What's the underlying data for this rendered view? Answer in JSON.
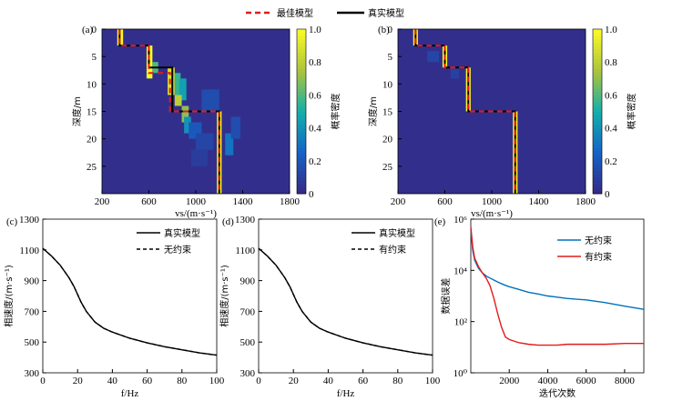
{
  "top_legend": {
    "items": [
      {
        "label": "最佳模型",
        "color": "#e41a1c",
        "dashed": true
      },
      {
        "label": "真实模型",
        "color": "#000000",
        "dashed": false
      }
    ]
  },
  "chart_data": [
    {
      "panel": "(a)",
      "type": "heatmap",
      "xlabel": "vs/(m·s⁻¹)",
      "ylabel": "深度/m",
      "colorbar_label": "概率密度",
      "xlim": [
        200,
        1800
      ],
      "ylim": [
        0,
        30
      ],
      "x_ticks": [
        "200",
        "600",
        "1000",
        "1400",
        "1800"
      ],
      "y_ticks": [
        "0",
        "5",
        "10",
        "15",
        "20",
        "25"
      ],
      "colorbar_ticks": [
        "0",
        "0.2",
        "0.4",
        "0.6",
        "0.8",
        "1.0"
      ],
      "colors": {
        "low": "#3d2f9a",
        "mid": "#18b3a4",
        "high": "#f9f925"
      },
      "true_model": {
        "vs": [
          350,
          350,
          600,
          600,
          800,
          800,
          1200,
          1200
        ],
        "depth": [
          0,
          3,
          3,
          7,
          7,
          15,
          15,
          30
        ]
      },
      "best_model": {
        "vs": [
          350,
          350,
          600,
          600,
          780,
          780,
          1200,
          1200
        ],
        "depth": [
          0,
          3,
          3,
          8,
          8,
          15,
          15,
          30
        ]
      }
    },
    {
      "panel": "(b)",
      "type": "heatmap",
      "xlabel": "vs/(m·s⁻¹)",
      "ylabel": "深度/m",
      "colorbar_label": "概率密度",
      "xlim": [
        200,
        1800
      ],
      "ylim": [
        0,
        30
      ],
      "x_ticks": [
        "200",
        "600",
        "1000",
        "1400",
        "1800"
      ],
      "y_ticks": [
        "0",
        "5",
        "10",
        "15",
        "20",
        "25"
      ],
      "colorbar_ticks": [
        "0",
        "0.2",
        "0.4",
        "0.6",
        "0.8",
        "1.0"
      ],
      "true_model": {
        "vs": [
          350,
          350,
          600,
          600,
          800,
          800,
          1200,
          1200
        ],
        "depth": [
          0,
          3,
          3,
          7,
          7,
          15,
          15,
          30
        ]
      },
      "best_model": {
        "vs": [
          350,
          350,
          600,
          600,
          800,
          800,
          1200,
          1200
        ],
        "depth": [
          0,
          3,
          3,
          7,
          7,
          15,
          15,
          30
        ]
      }
    },
    {
      "panel": "(c)",
      "type": "line",
      "xlabel": "f/Hz",
      "ylabel": "相速度/(m·s⁻¹)",
      "xlim": [
        0,
        100
      ],
      "ylim": [
        300,
        1300
      ],
      "x_ticks": [
        "0",
        "20",
        "40",
        "60",
        "80",
        "100"
      ],
      "y_ticks": [
        "300",
        "500",
        "700",
        "900",
        "1100",
        "1300"
      ],
      "x": [
        0,
        5,
        10,
        15,
        18,
        20,
        22,
        25,
        30,
        35,
        40,
        50,
        60,
        70,
        80,
        90,
        100
      ],
      "series": [
        {
          "name": "真实模型",
          "values": [
            1110,
            1060,
            1000,
            920,
            860,
            810,
            760,
            700,
            630,
            590,
            565,
            525,
            495,
            470,
            450,
            430,
            415
          ]
        },
        {
          "name": "无约束",
          "values": [
            1110,
            1060,
            1000,
            920,
            860,
            810,
            760,
            700,
            630,
            590,
            565,
            525,
            495,
            470,
            450,
            430,
            415
          ]
        }
      ]
    },
    {
      "panel": "(d)",
      "type": "line",
      "xlabel": "f/Hz",
      "ylabel": "相速度/(m·s⁻¹)",
      "xlim": [
        0,
        100
      ],
      "ylim": [
        300,
        1300
      ],
      "x_ticks": [
        "0",
        "20",
        "40",
        "60",
        "80",
        "100"
      ],
      "y_ticks": [
        "300",
        "500",
        "700",
        "900",
        "1100",
        "1300"
      ],
      "x": [
        0,
        5,
        10,
        15,
        18,
        20,
        22,
        25,
        30,
        35,
        40,
        50,
        60,
        70,
        80,
        90,
        100
      ],
      "series": [
        {
          "name": "真实模型",
          "values": [
            1110,
            1060,
            1000,
            920,
            860,
            810,
            760,
            700,
            630,
            590,
            565,
            525,
            495,
            470,
            450,
            430,
            415
          ]
        },
        {
          "name": "有约束",
          "values": [
            1110,
            1060,
            1000,
            920,
            860,
            810,
            760,
            700,
            630,
            590,
            565,
            525,
            495,
            470,
            450,
            430,
            415
          ]
        }
      ]
    },
    {
      "panel": "(e)",
      "type": "line",
      "xlabel": "迭代次数",
      "ylabel": "数据误差",
      "xlim": [
        0,
        9000
      ],
      "ylim": [
        1,
        1000000
      ],
      "y_scale": "log",
      "x_ticks": [
        "2000",
        "4000",
        "6000",
        "8000"
      ],
      "y_ticks": [
        "10⁰",
        "10²",
        "10⁴",
        "10⁶"
      ],
      "x": [
        0,
        100,
        200,
        400,
        600,
        800,
        1000,
        1200,
        1400,
        1600,
        1800,
        2000,
        2500,
        3000,
        3500,
        4000,
        4500,
        5000,
        6000,
        7000,
        8000,
        9000
      ],
      "series": [
        {
          "name": "无约束",
          "color": "#0072bd",
          "values": [
            400000,
            60000,
            25000,
            12000,
            8000,
            6000,
            5000,
            4200,
            3500,
            3000,
            2600,
            2300,
            1800,
            1400,
            1200,
            1000,
            900,
            800,
            700,
            550,
            400,
            300
          ]
        },
        {
          "name": "有约束",
          "color": "#e41a1c",
          "values": [
            500000,
            80000,
            30000,
            14000,
            8000,
            5000,
            2500,
            800,
            200,
            60,
            25,
            20,
            15,
            13,
            12,
            12,
            12,
            13,
            13,
            13,
            14,
            14
          ]
        }
      ]
    }
  ]
}
